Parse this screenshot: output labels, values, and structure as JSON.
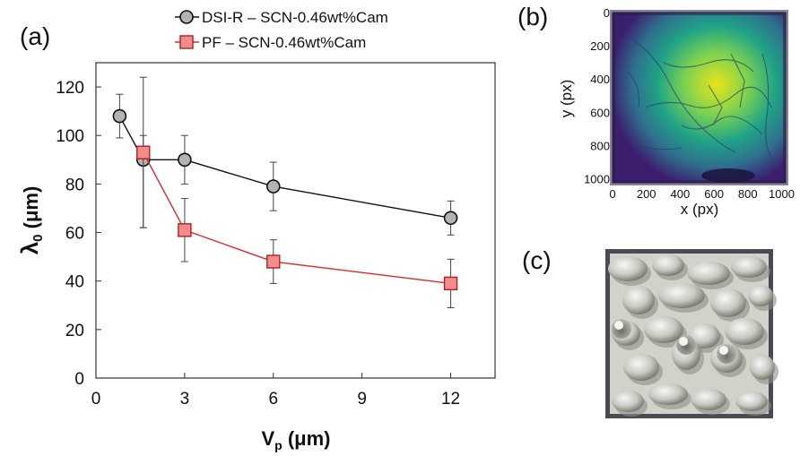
{
  "panel_labels": {
    "a": "(a)",
    "b": "(b)",
    "c": "(c)"
  },
  "chart_data": [
    {
      "type": "line",
      "panel": "(a)",
      "xlabel": "V",
      "xlabel_sub": "p",
      "xlabel_unit": " (μm)",
      "ylabel": "λ",
      "ylabel_sub": "0",
      "ylabel_unit": "  (μm)",
      "xlim": [
        0,
        13.5
      ],
      "ylim": [
        0,
        130
      ],
      "xticks": [
        0,
        3,
        6,
        9,
        12
      ],
      "yticks": [
        0,
        20,
        40,
        60,
        80,
        100,
        120
      ],
      "grid": false,
      "legend_position": "top-center",
      "series": [
        {
          "name": "DSI-R – SCN-0.46wt%Cam",
          "marker": "circle",
          "line_color": "#111111",
          "fill_color": "#b3b3b3",
          "x": [
            0.8,
            1.6,
            3,
            6,
            12
          ],
          "y": [
            108,
            90,
            90,
            79,
            66
          ],
          "err_low": [
            9,
            28,
            10,
            10,
            7
          ],
          "err_high": [
            9,
            10,
            10,
            10,
            7
          ]
        },
        {
          "name": "PF – SCN-0.46wt%Cam",
          "marker": "square",
          "line_color": "#d42a2a",
          "fill_color": "#f28b8b",
          "x": [
            1.6,
            3,
            6,
            12
          ],
          "y": [
            93,
            61,
            48,
            39
          ],
          "err_low": [
            31,
            13,
            9,
            10
          ],
          "err_high": [
            31,
            13,
            9,
            10
          ]
        }
      ]
    },
    {
      "type": "heatmap",
      "panel": "(b)",
      "xlabel": "x (px)",
      "ylabel": "y (px)",
      "xlim": [
        0,
        1024
      ],
      "ylim": [
        1024,
        0
      ],
      "xticks": [
        0,
        200,
        400,
        600,
        800,
        1000
      ],
      "yticks": [
        0,
        200,
        400,
        600,
        800,
        1000
      ],
      "colormap": [
        "#3b1f6e",
        "#2f6f8e",
        "#20a386",
        "#7ad151",
        "#e8e419"
      ],
      "peak_center": [
        620,
        430
      ]
    }
  ]
}
